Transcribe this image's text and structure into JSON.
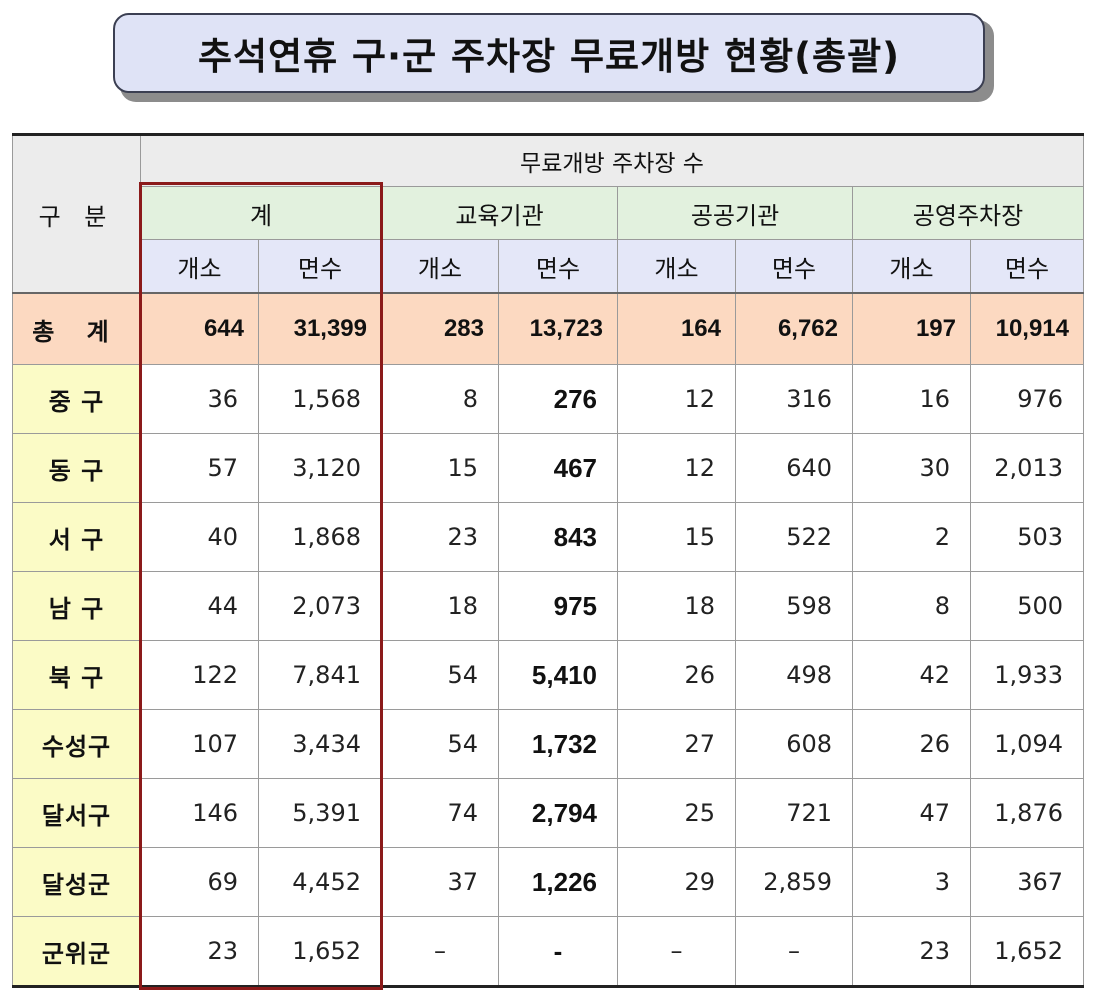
{
  "title": "추석연휴 구·군 주차장 무료개방 현황(총괄)",
  "header": {
    "row_label": "구 분",
    "span_label": "무료개방 주차장 수",
    "groups": [
      "계",
      "교육기관",
      "공공기관",
      "공영주차장"
    ],
    "sub": [
      "개소",
      "면수"
    ]
  },
  "total": {
    "label": "총 계",
    "values": [
      "644",
      "31,399",
      "283",
      "13,723",
      "164",
      "6,762",
      "197",
      "10,914"
    ]
  },
  "rows": [
    {
      "label": "중 구",
      "values": [
        "36",
        "1,568",
        "8",
        "276",
        "12",
        "316",
        "16",
        "976"
      ]
    },
    {
      "label": "동 구",
      "values": [
        "57",
        "3,120",
        "15",
        "467",
        "12",
        "640",
        "30",
        "2,013"
      ]
    },
    {
      "label": "서 구",
      "values": [
        "40",
        "1,868",
        "23",
        "843",
        "15",
        "522",
        "2",
        "503"
      ]
    },
    {
      "label": "남 구",
      "values": [
        "44",
        "2,073",
        "18",
        "975",
        "18",
        "598",
        "8",
        "500"
      ]
    },
    {
      "label": "북 구",
      "values": [
        "122",
        "7,841",
        "54",
        "5,410",
        "26",
        "498",
        "42",
        "1,933"
      ]
    },
    {
      "label": "수성구",
      "values": [
        "107",
        "3,434",
        "54",
        "1,732",
        "27",
        "608",
        "26",
        "1,094"
      ]
    },
    {
      "label": "달서구",
      "values": [
        "146",
        "5,391",
        "74",
        "2,794",
        "25",
        "721",
        "47",
        "1,876"
      ]
    },
    {
      "label": "달성군",
      "values": [
        "69",
        "4,452",
        "37",
        "1,226",
        "29",
        "2,859",
        "3",
        "367"
      ]
    },
    {
      "label": "군위군",
      "values": [
        "23",
        "1,652",
        "–",
        "-",
        "–",
        "–",
        "23",
        "1,652"
      ]
    }
  ],
  "colors": {
    "title_bg": "#dfe3f6",
    "group_header_bg": "#e2f1de",
    "sub_header_bg": "#e4e7f8",
    "total_bg": "#fcd9c1",
    "district_bg": "#fbfbc6",
    "highlight_border": "#8b1a1a"
  }
}
